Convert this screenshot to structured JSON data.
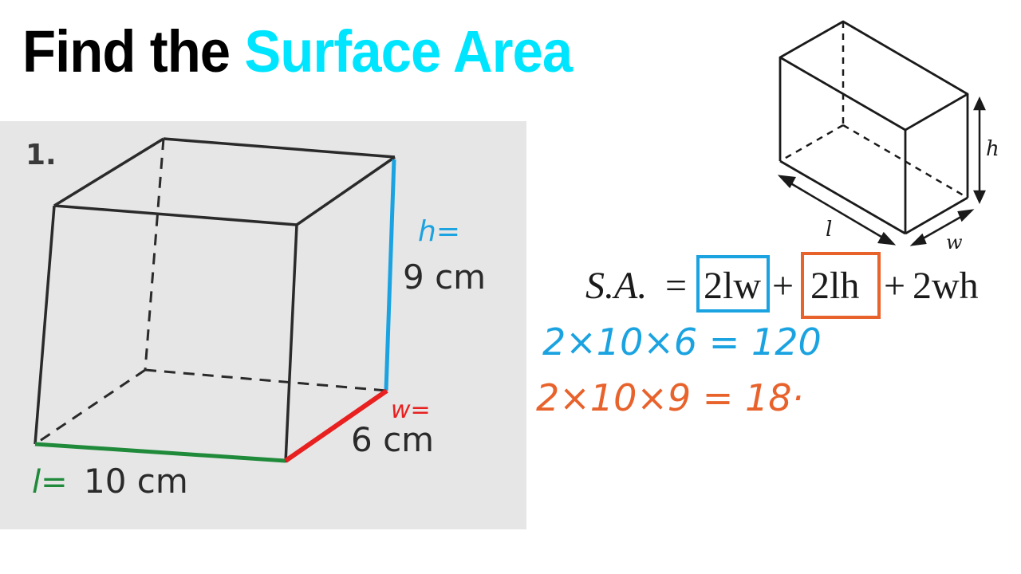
{
  "title": {
    "part1": "Find the",
    "part2": "Surface Area"
  },
  "colors": {
    "accent_title": "#00e5ff",
    "blue_ink": "#1aa3e0",
    "orange_ink": "#e8622c",
    "green_ink": "#1f8a3a",
    "red_ink": "#e82020",
    "photo_bg": "#e6e6e6"
  },
  "problem": {
    "number": "1.",
    "h_label": "h=",
    "h_value": "9 cm",
    "w_label": "w=",
    "w_value": "6 cm",
    "l_label": "l=",
    "l_value": "10 cm"
  },
  "prism": {
    "l": "l",
    "w": "w",
    "h": "h"
  },
  "formula": {
    "lhs": "S.A.",
    "eq": "=",
    "term1": "2lw",
    "plus1": "+",
    "term2": "2lh",
    "plus2": "+",
    "term3": "2wh"
  },
  "work": {
    "line1": "2×10×6 = 120",
    "line2": "2×10×9 = 18·"
  }
}
